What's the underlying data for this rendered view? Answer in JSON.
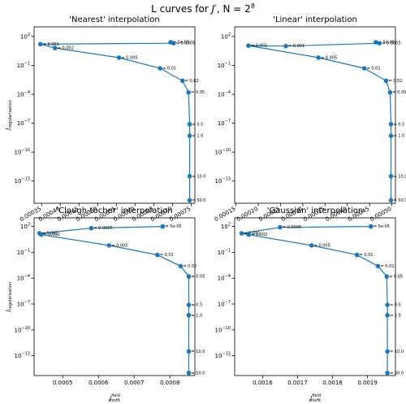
{
  "figure": {
    "title_prefix": "L curves for ",
    "title_j": "J′",
    "title_mid": ", N = 2",
    "title_exp": "8"
  },
  "axis_labels": {
    "y_main": "J",
    "y_sub": "regularisation",
    "x_main": "J",
    "x_sup": "field",
    "x_sub": "misfit"
  },
  "chart_data": [
    {
      "type": "scatter",
      "title": "'Nearest' interpolation",
      "y_scale": "log",
      "xlim": [
        0.00033,
        0.00076
      ],
      "ylim_exp": [
        -15.3,
        3.0
      ],
      "xticks": [
        0.00035,
        0.0004,
        0.00045,
        0.0005,
        0.00055,
        0.0006,
        0.00065,
        0.0007,
        0.00075
      ],
      "xtick_labels": [
        "0.00035",
        "0.00040",
        "0.00045",
        "0.00050",
        "0.00055",
        "0.00060",
        "0.00065",
        "0.00070",
        "0.00075"
      ],
      "xtick_rotated": true,
      "show_xlabel": false,
      "show_ylabel": true,
      "yticks_exp": [
        2,
        -1,
        -4,
        -7,
        -10,
        -13
      ],
      "point_labels": [
        "5e-05",
        "0.0005",
        "0.001",
        "0.002",
        "0.005",
        "0.01",
        "0.02",
        "0.05",
        "0.5",
        "1.0",
        "10.0",
        "50.0"
      ],
      "x": [
        0.000695,
        0.000703,
        0.000347,
        0.000386,
        0.000557,
        0.000667,
        0.000727,
        0.000743,
        0.000746,
        0.000746,
        0.000746,
        0.000746
      ],
      "y_exp": [
        1.4,
        1.3,
        1.2,
        0.8,
        -0.2,
        -1.3,
        -2.6,
        -3.8,
        -7.1,
        -8.3,
        -12.5,
        -15.0
      ]
    },
    {
      "type": "scatter",
      "title": "'Linear' interpolation",
      "y_scale": "log",
      "xlim": [
        0.000147,
        0.000508
      ],
      "ylim_exp": [
        -15.3,
        3.0
      ],
      "xticks": [
        0.00015,
        0.0002,
        0.00025,
        0.0003,
        0.00035,
        0.0004,
        0.00045,
        0.0005
      ],
      "xtick_labels": [
        "0.00015",
        "0.00020",
        "0.00025",
        "0.00030",
        "0.00035",
        "0.00040",
        "0.00045",
        "0.00050"
      ],
      "xtick_rotated": true,
      "show_xlabel": false,
      "show_ylabel": false,
      "yticks_exp": [
        2,
        -1,
        -4,
        -7,
        -10,
        -13
      ],
      "point_labels": [
        "5e-05",
        "0.0005",
        "0.001",
        "0.002",
        "0.005",
        "0.01",
        "0.02",
        "0.05",
        "0.5",
        "1.0",
        "10.0",
        "50.0"
      ],
      "x": [
        0.000464,
        0.000472,
        0.000262,
        0.000178,
        0.000335,
        0.000438,
        0.000487,
        0.000496,
        0.000498,
        0.000498,
        0.000498,
        0.000498
      ],
      "y_exp": [
        1.4,
        1.3,
        1.0,
        1.05,
        -0.2,
        -1.3,
        -2.6,
        -3.8,
        -7.1,
        -8.3,
        -12.5,
        -15.0
      ]
    },
    {
      "type": "scatter",
      "title": "'Clough-tocher' interpolation",
      "y_scale": "log",
      "xlim": [
        0.00042,
        0.00087
      ],
      "ylim_exp": [
        -15.3,
        3.0
      ],
      "xticks": [
        0.0005,
        0.0006,
        0.0007,
        0.0008
      ],
      "xtick_labels": [
        "0.0005",
        "0.0006",
        "0.0007",
        "0.0008"
      ],
      "xtick_rotated": false,
      "show_xlabel": true,
      "show_ylabel": true,
      "yticks_exp": [
        2,
        -1,
        -4,
        -7,
        -10,
        -13
      ],
      "point_labels": [
        "5e-05",
        "0.0005",
        "0.001",
        "0.002",
        "0.005",
        "0.01",
        "0.02",
        "0.05",
        "0.5",
        "1.0",
        "10.0",
        "50.0"
      ],
      "x": [
        0.00078,
        0.00058,
        0.000435,
        0.00044,
        0.00063,
        0.000765,
        0.00083,
        0.000853,
        0.000853,
        0.000853,
        0.000853,
        0.000853
      ],
      "y_exp": [
        2.0,
        1.8,
        1.2,
        1.05,
        -0.2,
        -1.3,
        -2.6,
        -3.8,
        -7.1,
        -8.3,
        -12.5,
        -15.0
      ]
    },
    {
      "type": "scatter",
      "title": "'Gaussian' interpolation",
      "y_scale": "log",
      "xlim": [
        0.00152,
        0.00198
      ],
      "ylim_exp": [
        -15.3,
        3.0
      ],
      "xticks": [
        0.0016,
        0.0017,
        0.0018,
        0.0019
      ],
      "xtick_labels": [
        "0.0016",
        "0.0017",
        "0.0018",
        "0.0019"
      ],
      "xtick_rotated": false,
      "show_xlabel": true,
      "show_ylabel": false,
      "yticks_exp": [
        2,
        -1,
        -4,
        -7,
        -10,
        -13
      ],
      "point_labels": [
        "5e-05",
        "0.0005",
        "0.001",
        "0.002",
        "0.005",
        "0.01",
        "0.02",
        "0.05",
        "0.5",
        "1.0",
        "10.0",
        "50.0"
      ],
      "x": [
        0.00191,
        0.00165,
        0.00154,
        0.00156,
        0.00174,
        0.00187,
        0.00193,
        0.001955,
        0.001957,
        0.001957,
        0.001957,
        0.001957
      ],
      "y_exp": [
        2.0,
        1.9,
        1.2,
        1.05,
        -0.2,
        -1.3,
        -2.6,
        -3.8,
        -7.1,
        -8.3,
        -12.5,
        -15.0
      ]
    }
  ],
  "colors": {
    "series": "#1f77b4",
    "axis": "#000000",
    "text": "#000000",
    "background": "#ffffff"
  }
}
